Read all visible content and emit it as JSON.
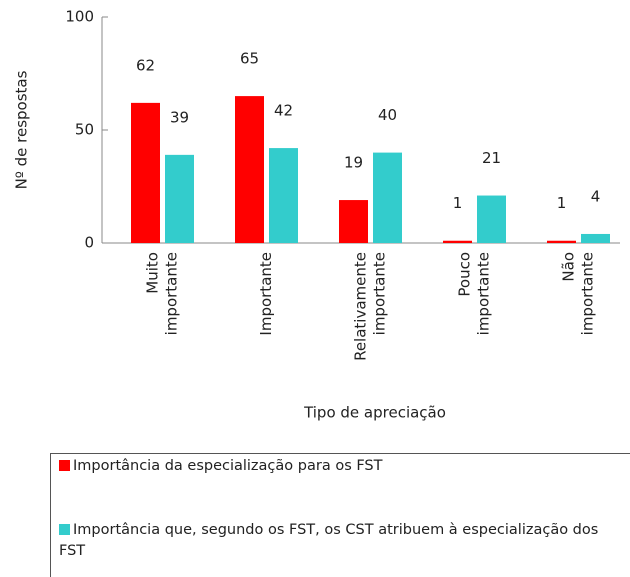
{
  "chart_data": {
    "type": "bar",
    "categories": [
      "Muito importante",
      "Importante",
      "Relativamente importante",
      "Pouco importante",
      "Não importante"
    ],
    "series": [
      {
        "name": "Importância da especialização para os FST",
        "color": "#ff0000",
        "values": [
          62,
          65,
          19,
          1,
          1
        ]
      },
      {
        "name": "Importância que, segundo os FST, os CST atribuem à especialização dos FST",
        "color": "#33cccc",
        "values": [
          39,
          42,
          40,
          21,
          4
        ]
      }
    ],
    "ylim": [
      0,
      100
    ],
    "yticks": [
      0,
      50,
      100
    ],
    "y_label": "Nº de respostas",
    "x_label": "Tipo de apreciação",
    "grid": false
  }
}
